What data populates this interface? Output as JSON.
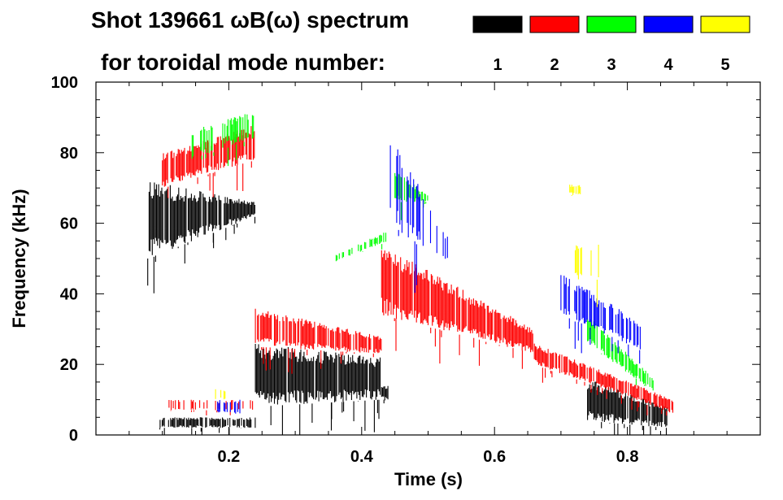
{
  "chart_data": {
    "type": "heatmap",
    "title_line1": "Shot 139661 ωB(ω) spectrum",
    "title_line2": "for toroidal mode number:",
    "xlabel": "Time (s)",
    "ylabel": "Frequency (kHz)",
    "xlim": [
      0.0,
      1.0
    ],
    "ylim": [
      0,
      100
    ],
    "x_ticks": [
      0.2,
      0.4,
      0.6,
      0.8
    ],
    "x_tick_labels": [
      "0.2",
      "0.4",
      "0.6",
      "0.8"
    ],
    "y_ticks": [
      0,
      20,
      40,
      60,
      80,
      100
    ],
    "y_tick_labels": [
      "0",
      "20",
      "40",
      "60",
      "80",
      "100"
    ],
    "legend": [
      {
        "n": "1",
        "color": "#000000"
      },
      {
        "n": "2",
        "color": "#ff0000"
      },
      {
        "n": "3",
        "color": "#00ff00"
      },
      {
        "n": "4",
        "color": "#0000ff"
      },
      {
        "n": "5",
        "color": "#ffff00"
      }
    ],
    "series": [
      {
        "name": "n=1",
        "color": "#000000",
        "regions": [
          {
            "t": [
              0.08,
              0.24
            ],
            "f_low": [
              50,
              62
            ],
            "f_high": [
              72,
              66
            ],
            "density": 0.95
          },
          {
            "t": [
              0.095,
              0.24
            ],
            "f_low": [
              2,
              2
            ],
            "f_high": [
              5,
              5
            ],
            "density": 0.7
          },
          {
            "t": [
              0.24,
              0.43
            ],
            "f_low": [
              8,
              10
            ],
            "f_high": [
              26,
              22
            ],
            "density": 0.95
          },
          {
            "t": [
              0.43,
              0.44
            ],
            "f_low": [
              10,
              10
            ],
            "f_high": [
              14,
              14
            ],
            "density": 0.9
          },
          {
            "t": [
              0.74,
              0.86
            ],
            "f_low": [
              4,
              2
            ],
            "f_high": [
              16,
              8
            ],
            "density": 0.9
          }
        ]
      },
      {
        "name": "n=2",
        "color": "#ff0000",
        "regions": [
          {
            "t": [
              0.1,
              0.24
            ],
            "f_low": [
              70,
              78
            ],
            "f_high": [
              80,
              88
            ],
            "density": 0.85
          },
          {
            "t": [
              0.24,
              0.43
            ],
            "f_low": [
              25,
              23
            ],
            "f_high": [
              36,
              28
            ],
            "density": 0.8
          },
          {
            "t": [
              0.43,
              0.66
            ],
            "f_low": [
              34,
              23
            ],
            "f_high": [
              54,
              30
            ],
            "density": 0.9
          },
          {
            "t": [
              0.66,
              0.87
            ],
            "f_low": [
              20,
              6
            ],
            "f_high": [
              26,
              10
            ],
            "density": 0.85
          },
          {
            "t": [
              0.11,
              0.24
            ],
            "f_low": [
              7,
              7
            ],
            "f_high": [
              10,
              10
            ],
            "density": 0.3
          }
        ]
      },
      {
        "name": "n=3",
        "color": "#00ff00",
        "regions": [
          {
            "t": [
              0.14,
              0.24
            ],
            "f_low": [
              78,
              84
            ],
            "f_high": [
              86,
              92
            ],
            "density": 0.6
          },
          {
            "t": [
              0.36,
              0.44
            ],
            "f_low": [
              49,
              55
            ],
            "f_high": [
              51,
              58
            ],
            "density": 0.5
          },
          {
            "t": [
              0.45,
              0.5
            ],
            "f_low": [
              66,
              66
            ],
            "f_high": [
              75,
              68
            ],
            "density": 0.7
          },
          {
            "t": [
              0.74,
              0.84
            ],
            "f_low": [
              26,
              12
            ],
            "f_high": [
              34,
              16
            ],
            "density": 0.7
          }
        ]
      },
      {
        "name": "n=4",
        "color": "#0000ff",
        "regions": [
          {
            "t": [
              0.44,
              0.53
            ],
            "f_low": [
              60,
              48
            ],
            "f_high": [
              88,
              56
            ],
            "density": 0.3
          },
          {
            "t": [
              0.7,
              0.82
            ],
            "f_low": [
              34,
              24
            ],
            "f_high": [
              46,
              32
            ],
            "density": 0.6
          },
          {
            "t": [
              0.18,
              0.22
            ],
            "f_low": [
              6,
              6
            ],
            "f_high": [
              10,
              10
            ],
            "density": 0.3
          }
        ]
      },
      {
        "name": "n=5",
        "color": "#ffff00",
        "regions": [
          {
            "t": [
              0.71,
              0.73
            ],
            "f_low": [
              68,
              68
            ],
            "f_high": [
              71,
              71
            ],
            "density": 0.5
          },
          {
            "t": [
              0.72,
              0.76
            ],
            "f_low": [
              44,
              44
            ],
            "f_high": [
              54,
              54
            ],
            "density": 0.4
          },
          {
            "t": [
              0.18,
              0.2
            ],
            "f_low": [
              10,
              10
            ],
            "f_high": [
              13,
              13
            ],
            "density": 0.3
          }
        ]
      }
    ]
  }
}
